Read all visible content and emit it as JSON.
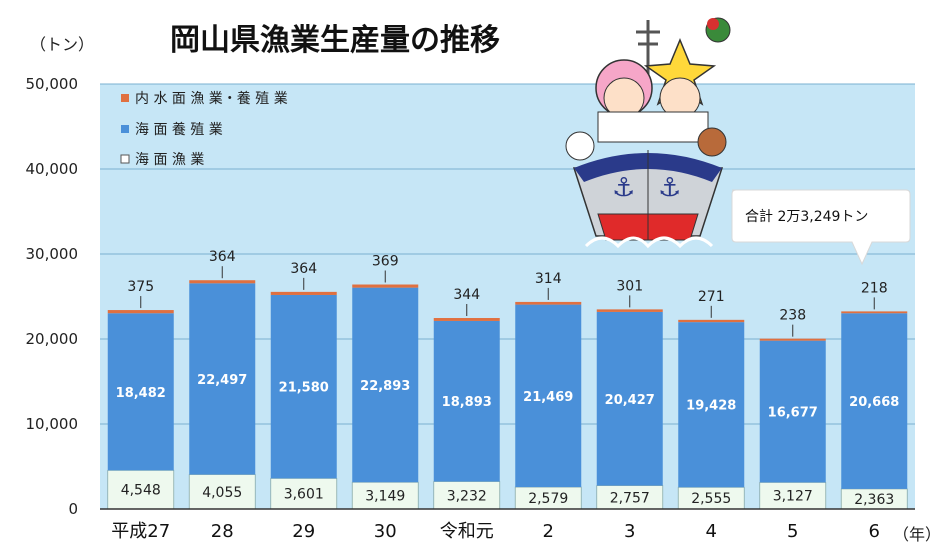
{
  "chart_data": {
    "type": "bar",
    "stacked": true,
    "title": "岡山県漁業生産量の推移",
    "y_unit": "（トン）",
    "x_unit": "（年）",
    "ylim": [
      0,
      50000
    ],
    "yticks": [
      0,
      10000,
      20000,
      30000,
      40000,
      50000
    ],
    "ytick_labels": [
      "0",
      "10,000",
      "20,000",
      "30,000",
      "40,000",
      "50,000"
    ],
    "grid": true,
    "legend_position": "top-left",
    "categories": [
      "平成27",
      "28",
      "29",
      "30",
      "令和元",
      "2",
      "3",
      "4",
      "5",
      "6"
    ],
    "series": [
      {
        "name": "海 面 漁 業",
        "color": "#eef9ee",
        "values": [
          4548,
          4055,
          3601,
          3149,
          3232,
          2579,
          2757,
          2555,
          3127,
          2363
        ],
        "labels": [
          "4,548",
          "4,055",
          "3,601",
          "3,149",
          "3,232",
          "2,579",
          "2,757",
          "2,555",
          "3,127",
          "2,363"
        ]
      },
      {
        "name": "海 面 養 殖 業",
        "color": "#4a90d9",
        "values": [
          18482,
          22497,
          21580,
          22893,
          18893,
          21469,
          20427,
          19428,
          16677,
          20668
        ],
        "labels": [
          "18,482",
          "22,497",
          "21,580",
          "22,893",
          "18,893",
          "21,469",
          "20,427",
          "19,428",
          "16,677",
          "20,668"
        ]
      },
      {
        "name": "内 水 面 漁 業・養 殖 業",
        "color": "#e07040",
        "values": [
          375,
          364,
          364,
          369,
          344,
          314,
          301,
          271,
          238,
          218
        ],
        "labels": [
          "375",
          "364",
          "364",
          "369",
          "344",
          "314",
          "301",
          "271",
          "238",
          "218"
        ]
      }
    ],
    "annotation": "合計 2万3,249トン"
  },
  "colors": {
    "plot_bg": "#c6e6f6",
    "grid": "#7ab0d0",
    "axis": "#333333"
  }
}
